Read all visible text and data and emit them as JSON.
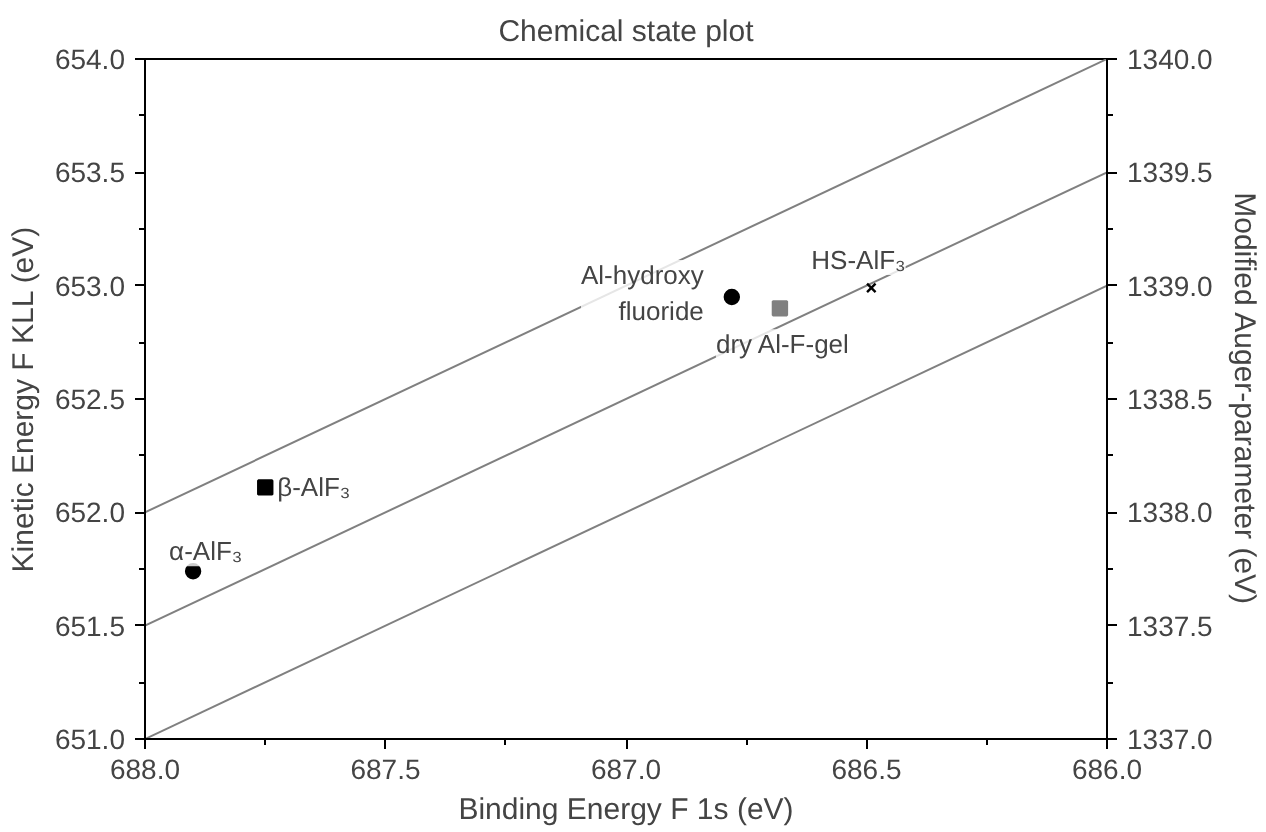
{
  "chart_data": {
    "type": "scatter",
    "title": "Chemical state plot",
    "xlabel": "Binding Energy F 1s (eV)",
    "ylabel": "Kinetic Energy F KLL (eV)",
    "y2label": "Modified Auger-parameter (eV)",
    "xlim": [
      688.0,
      686.0
    ],
    "xticks": [
      {
        "value": 688.0,
        "label": "688.0"
      },
      {
        "value": 687.5,
        "label": "687.5"
      },
      {
        "value": 687.0,
        "label": "687.0"
      },
      {
        "value": 686.5,
        "label": "686.5"
      },
      {
        "value": 686.0,
        "label": "686.0"
      }
    ],
    "ylim": [
      651.0,
      654.0
    ],
    "yticks": [
      {
        "value": 651.0,
        "label": "651.0"
      },
      {
        "value": 651.5,
        "label": "651.5"
      },
      {
        "value": 652.0,
        "label": "652.0"
      },
      {
        "value": 652.5,
        "label": "652.5"
      },
      {
        "value": 653.0,
        "label": "653.0"
      },
      {
        "value": 653.5,
        "label": "653.5"
      },
      {
        "value": 654.0,
        "label": "654.0"
      }
    ],
    "y2lim": [
      1337.0,
      1340.0
    ],
    "y2ticks": [
      {
        "value": 1337.0,
        "label": "1337.0"
      },
      {
        "value": 1337.5,
        "label": "1337.5"
      },
      {
        "value": 1338.0,
        "label": "1338.0"
      },
      {
        "value": 1338.5,
        "label": "1338.5"
      },
      {
        "value": 1339.0,
        "label": "1339.0"
      },
      {
        "value": 1339.5,
        "label": "1339.5"
      },
      {
        "value": 1340.0,
        "label": "1340.0"
      }
    ],
    "grid": false,
    "series": [
      {
        "type": "line",
        "color": "#808080",
        "x": [
          688.0,
          686.0
        ],
        "values": [
          652.0,
          654.0
        ]
      },
      {
        "type": "line",
        "color": "#808080",
        "x": [
          688.0,
          686.0
        ],
        "values": [
          651.5,
          653.5
        ]
      },
      {
        "type": "line",
        "color": "#808080",
        "x": [
          688.0,
          686.0
        ],
        "values": [
          651.0,
          653.0
        ]
      },
      {
        "name": "α-AlF₃",
        "color": "#000000",
        "marker": "circle",
        "x": [
          687.9
        ],
        "values": [
          651.74
        ]
      },
      {
        "name": "β-AlF₃",
        "color": "#000000",
        "marker": "square",
        "x": [
          687.75
        ],
        "values": [
          652.11
        ]
      },
      {
        "name": "Al-hydroxy\nfluoride",
        "color": "#000000",
        "marker": "circle",
        "x": [
          686.78
        ],
        "values": [
          652.95
        ]
      },
      {
        "name": "dry Al-F-gel",
        "color": "#808080",
        "marker": "square",
        "x": [
          686.68
        ],
        "values": [
          652.9
        ]
      },
      {
        "name": "HS-AlF₃",
        "color": "#000000",
        "marker": "x",
        "x": [
          686.49
        ],
        "values": [
          652.99
        ]
      }
    ]
  }
}
